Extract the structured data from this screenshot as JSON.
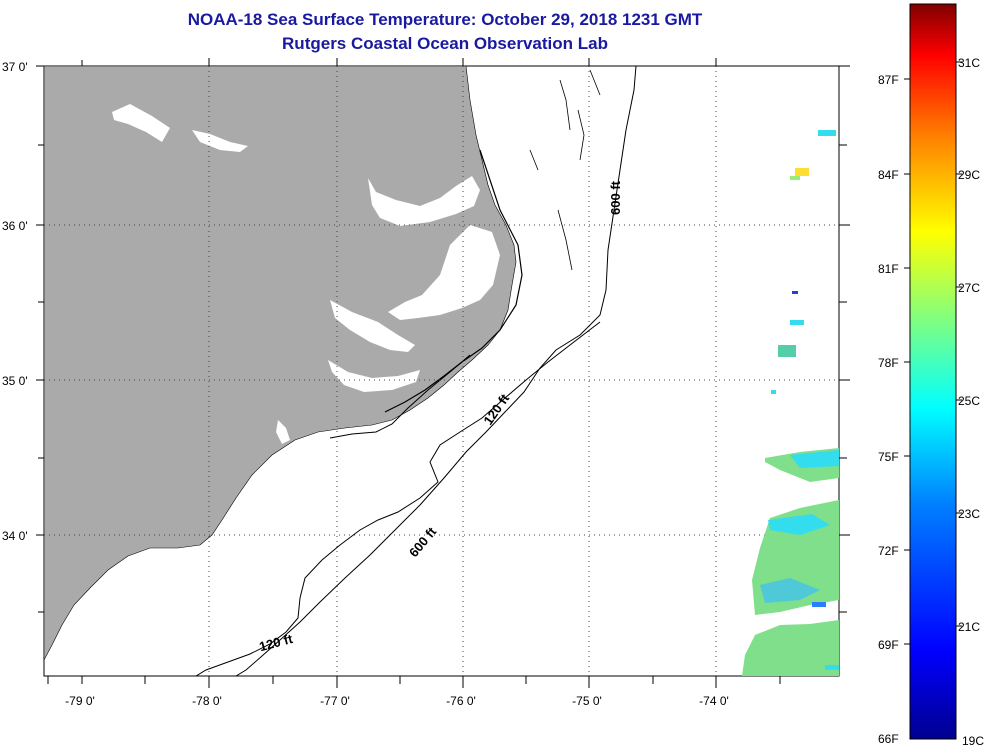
{
  "title": "NOAA-18 Sea Surface Temperature:  October 29, 2018 1231 GMT",
  "subtitle": "Rutgers Coastal Ocean Observation Lab",
  "lat_labels": [
    "37 0'",
    "36 0'",
    "35 0'",
    "34 0'"
  ],
  "lon_labels": [
    "-79 0'",
    "-78 0'",
    "-77 0'",
    "-76 0'",
    "-75 0'",
    "-74 0'"
  ],
  "contour_labels": {
    "c600_north": "600 ft",
    "c120_mid": "120 ft",
    "c600_mid": "600 ft",
    "c120_south": "120 ft"
  },
  "colorbar": {
    "fahrenheit": [
      "87F",
      "84F",
      "81F",
      "78F",
      "75F",
      "72F",
      "69F",
      "66F"
    ],
    "celsius": [
      "31C",
      "29C",
      "27C",
      "25C",
      "23C",
      "21C",
      "19C"
    ],
    "colors": [
      "#00008f",
      "#0000ff",
      "#0080ff",
      "#00ffff",
      "#80ff80",
      "#ffff00",
      "#ff8000",
      "#ff0000",
      "#800000"
    ]
  },
  "colors": {
    "land": "#aaaaaa",
    "title": "#1a1aa0",
    "sst_green": "#7fdf8a",
    "sst_cyan": "#33ddee",
    "sst_blue": "#2a7fff"
  }
}
